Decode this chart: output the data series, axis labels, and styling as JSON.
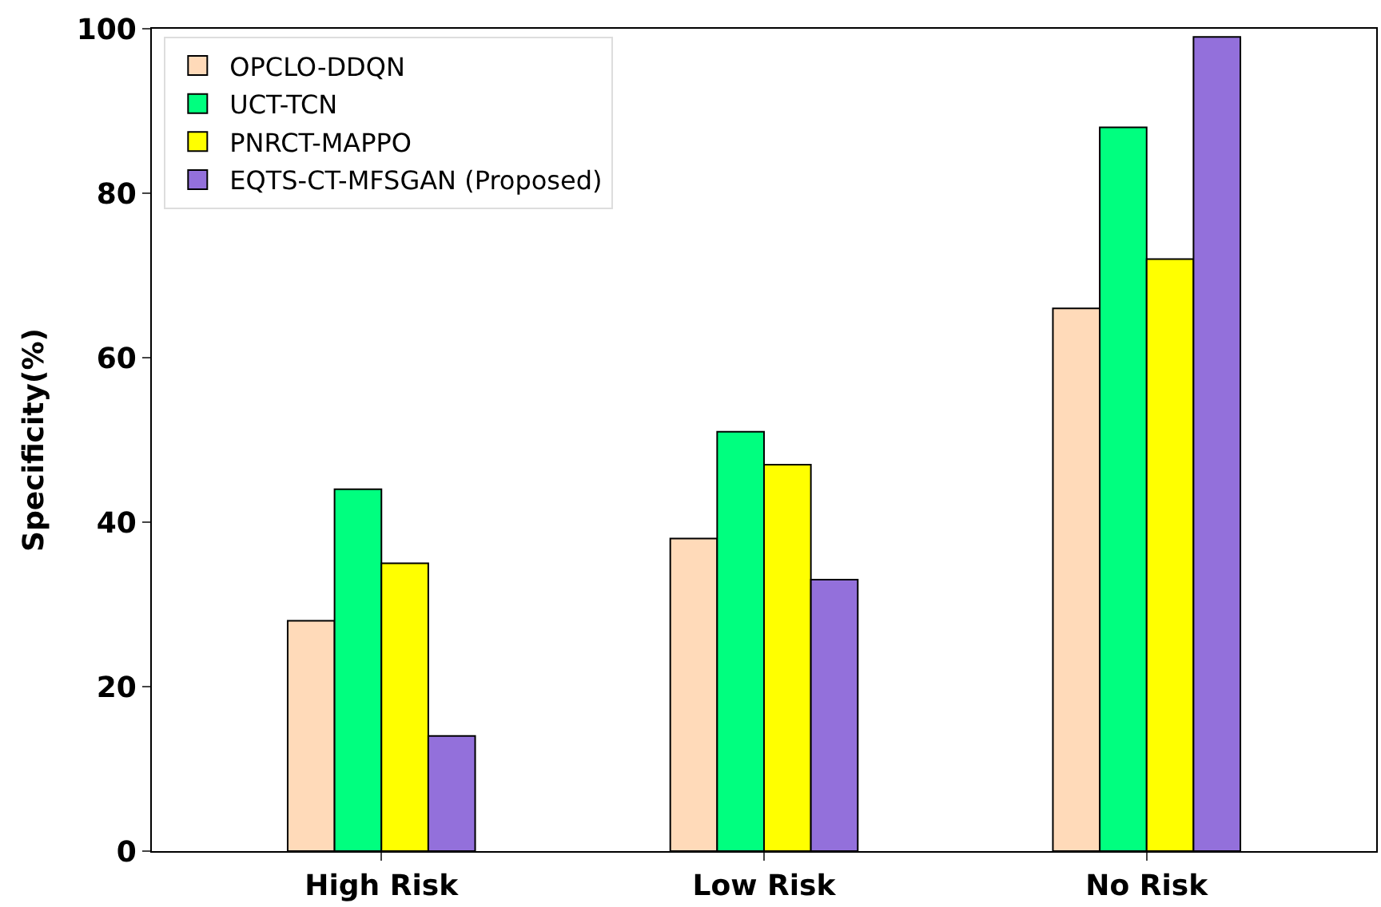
{
  "chart_data": {
    "type": "bar",
    "ylabel": "Specificity(%)",
    "categories": [
      "High Risk",
      "Low Risk",
      "No Risk"
    ],
    "series": [
      {
        "name": "OPCLO-DDQN",
        "color": "#ffdab9",
        "values": [
          28,
          38,
          66
        ]
      },
      {
        "name": "UCT-TCN",
        "color": "#00ff7f",
        "values": [
          44,
          51,
          88
        ]
      },
      {
        "name": "PNRCT-MAPPO",
        "color": "#ffff00",
        "values": [
          35,
          47,
          72
        ]
      },
      {
        "name": "EQTS-CT-MFSGAN (Proposed)",
        "color": "#9370db",
        "values": [
          14,
          33,
          99
        ]
      }
    ],
    "ylim": [
      0,
      100
    ],
    "yticks": [
      0,
      20,
      40,
      60,
      80,
      100
    ],
    "legend": "top left"
  }
}
